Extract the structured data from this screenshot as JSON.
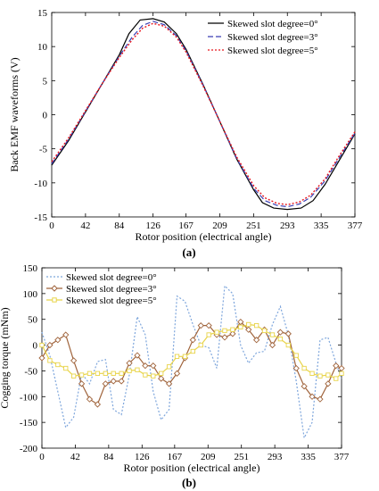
{
  "figure": {
    "panel_a_label": "(a)",
    "panel_b_label": "(b)"
  },
  "chart_data": [
    {
      "type": "line",
      "panel": "(a)",
      "xlabel": "Rotor position (electrical angle)",
      "ylabel": "Back EMF waveforms (V)",
      "xlim": [
        0,
        377
      ],
      "ylim": [
        -15,
        15
      ],
      "xticks": [
        0,
        42,
        84,
        126,
        167,
        209,
        251,
        293,
        335,
        377
      ],
      "yticks": [
        -15,
        -10,
        -5,
        0,
        5,
        10,
        15
      ],
      "legend_position": "top-right",
      "grid": false,
      "series": [
        {
          "name": "Skewed slot degree=0°",
          "color": "#000000",
          "dash": "solid",
          "x": [
            0,
            21,
            42,
            63,
            84,
            96,
            110,
            126,
            140,
            155,
            167,
            188,
            209,
            230,
            251,
            262,
            276,
            293,
            310,
            325,
            340,
            356,
            377
          ],
          "y": [
            -7.4,
            -3.8,
            0.4,
            4.6,
            8.8,
            11.9,
            13.9,
            14.1,
            13.6,
            11.9,
            9.6,
            4.5,
            -1.0,
            -6.5,
            -11.0,
            -12.9,
            -13.7,
            -13.9,
            -13.7,
            -12.6,
            -10.2,
            -7.0,
            -2.8
          ]
        },
        {
          "name": "Skewed slot degree=3°",
          "color": "#3a3fb5",
          "dash": "dash",
          "x": [
            0,
            21,
            42,
            63,
            84,
            100,
            113,
            126,
            140,
            155,
            167,
            188,
            209,
            230,
            251,
            265,
            280,
            293,
            308,
            322,
            340,
            356,
            377
          ],
          "y": [
            -7.2,
            -3.6,
            0.5,
            4.6,
            8.6,
            11.4,
            13.1,
            13.7,
            13.2,
            11.6,
            9.4,
            4.4,
            -1.0,
            -6.4,
            -10.8,
            -12.6,
            -13.3,
            -13.5,
            -13.1,
            -12.1,
            -9.7,
            -6.6,
            -2.7
          ]
        },
        {
          "name": "Skewed slot degree=5°",
          "color": "#e8161d",
          "dash": "dot",
          "x": [
            0,
            21,
            42,
            63,
            84,
            100,
            113,
            126,
            140,
            155,
            167,
            188,
            209,
            230,
            251,
            265,
            280,
            293,
            308,
            322,
            340,
            356,
            377
          ],
          "y": [
            -6.9,
            -3.4,
            0.6,
            4.6,
            8.4,
            11.0,
            12.7,
            13.4,
            13.0,
            11.4,
            9.2,
            4.3,
            -1.0,
            -6.2,
            -10.4,
            -12.2,
            -13.0,
            -13.2,
            -12.8,
            -11.8,
            -9.4,
            -6.3,
            -2.5
          ]
        }
      ]
    },
    {
      "type": "line",
      "panel": "(b)",
      "xlabel": "Rotor position (electrical angle)",
      "ylabel": "Cogging torque (mNm)",
      "xlim": [
        0,
        377
      ],
      "ylim": [
        -200,
        150
      ],
      "xticks": [
        0,
        42,
        84,
        126,
        167,
        209,
        251,
        293,
        335,
        377
      ],
      "yticks": [
        -200,
        -150,
        -100,
        -50,
        0,
        50,
        100,
        150
      ],
      "legend_position": "top-left",
      "grid": false,
      "series": [
        {
          "name": "Skewed slot degree=0°",
          "color": "#7ea6dc",
          "marker": "none",
          "dash": "dot",
          "x": [
            0,
            10,
            20,
            30,
            40,
            50,
            60,
            70,
            80,
            90,
            100,
            110,
            120,
            130,
            140,
            150,
            160,
            170,
            180,
            190,
            200,
            210,
            220,
            230,
            240,
            250,
            260,
            270,
            280,
            290,
            300,
            310,
            320,
            330,
            340,
            350,
            360,
            370,
            377
          ],
          "y": [
            25,
            -20,
            -90,
            -160,
            -140,
            -55,
            -75,
            -32,
            -28,
            -125,
            -135,
            -58,
            55,
            20,
            -90,
            -145,
            -125,
            95,
            85,
            40,
            0,
            -5,
            -45,
            115,
            100,
            0,
            -35,
            -15,
            -12,
            40,
            75,
            20,
            -70,
            -180,
            -150,
            10,
            15,
            -35,
            -65
          ]
        },
        {
          "name": "Skewed slot degree=3°",
          "color": "#a0643c",
          "marker": "diamond",
          "dash": "solid",
          "x": [
            0,
            10,
            20,
            30,
            40,
            50,
            60,
            70,
            80,
            90,
            100,
            110,
            120,
            130,
            140,
            150,
            160,
            170,
            180,
            190,
            200,
            210,
            220,
            230,
            240,
            250,
            260,
            270,
            280,
            290,
            300,
            310,
            320,
            330,
            340,
            350,
            360,
            370,
            377
          ],
          "y": [
            -25,
            0,
            10,
            20,
            -30,
            -75,
            -105,
            -115,
            -75,
            -70,
            -70,
            -35,
            -20,
            -40,
            -40,
            -65,
            -75,
            -55,
            -25,
            10,
            38,
            38,
            20,
            15,
            22,
            45,
            30,
            10,
            30,
            0,
            25,
            22,
            -45,
            -80,
            -100,
            -105,
            -75,
            -40,
            -45
          ]
        },
        {
          "name": "Skewed slot degree=5°",
          "color": "#e8d44a",
          "marker": "square",
          "dash": "solid",
          "x": [
            0,
            10,
            20,
            30,
            40,
            50,
            60,
            70,
            80,
            90,
            100,
            110,
            120,
            130,
            140,
            150,
            160,
            170,
            180,
            190,
            200,
            210,
            220,
            230,
            240,
            250,
            260,
            270,
            280,
            290,
            300,
            310,
            320,
            330,
            340,
            350,
            360,
            370,
            377
          ],
          "y": [
            0,
            -30,
            -38,
            -45,
            -60,
            -58,
            -55,
            -55,
            -55,
            -55,
            -55,
            -50,
            -48,
            -58,
            -60,
            -55,
            -42,
            -22,
            -22,
            -12,
            0,
            20,
            25,
            28,
            30,
            35,
            40,
            38,
            28,
            20,
            12,
            0,
            -20,
            -45,
            -55,
            -60,
            -58,
            -65,
            -55
          ]
        }
      ]
    }
  ]
}
